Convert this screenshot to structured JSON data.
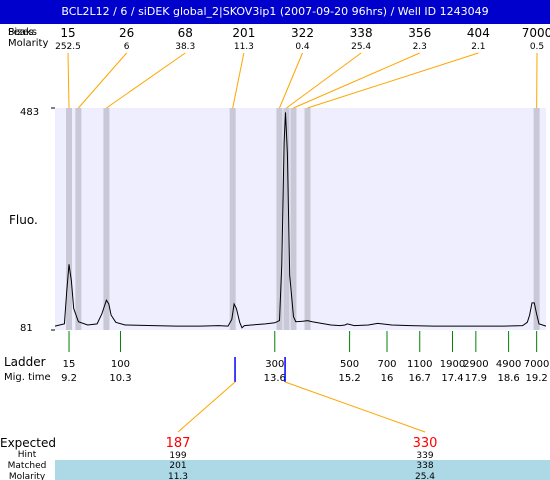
{
  "title": "BCL2L12 / 6 / siDEK global_2|SKOV3ip1 (2007-09-20 96hrs) / Well ID 1243049",
  "top_labels": {
    "sizes": "Sizes",
    "peaks": "Peaks",
    "molarity": "Molarity"
  },
  "row_labels": {
    "fluo": "Fluo.",
    "ladder": "Ladder",
    "mig_time": "Mig. time",
    "expected": "Expected",
    "hint": "Hint",
    "matched": "Matched",
    "molarity": "Molarity"
  },
  "colors": {
    "title_bg": "#0000cc",
    "plot_bg": "#eeeeff",
    "band": "#c8c8d6",
    "leader": "#ffa500",
    "ladder_tick": "#008000",
    "expected_text": "#ff0000",
    "expected_tick": "#0000ff",
    "matched_bg": "#add8e6",
    "trace": "#000000"
  },
  "chart_data": {
    "type": "line",
    "ylim": [
      81,
      483
    ],
    "ytick_labels": [
      "483",
      "81"
    ],
    "peaks": [
      {
        "size": "15",
        "molarity": "252.5",
        "time": 9.2
      },
      {
        "size": "26",
        "molarity": "6",
        "time": 9.4
      },
      {
        "size": "68",
        "molarity": "38.3",
        "time": 10.0
      },
      {
        "size": "201",
        "molarity": "11.3",
        "time": 12.7
      },
      {
        "size": "322",
        "molarity": "0.4",
        "time": 13.7
      },
      {
        "size": "338",
        "molarity": "25.4",
        "time": 13.85
      },
      {
        "size": "356",
        "molarity": "2.3",
        "time": 14.0
      },
      {
        "size": "404",
        "molarity": "2.1",
        "time": 14.3
      },
      {
        "size": "7000",
        "molarity": "0.5",
        "time": 19.2
      }
    ],
    "ladder": [
      {
        "size": "15",
        "time": "9.2"
      },
      {
        "size": "100",
        "time": "10.3"
      },
      {
        "size": "300",
        "time": "13.6"
      },
      {
        "size": "500",
        "time": "15.2"
      },
      {
        "size": "700",
        "time": "16"
      },
      {
        "size": "1100",
        "time": "16.7"
      },
      {
        "size": "1900",
        "time": "17.4"
      },
      {
        "size": "2900",
        "time": "17.9"
      },
      {
        "size": "4900",
        "time": "18.6"
      },
      {
        "size": "7000",
        "time": "19.2"
      }
    ],
    "expected": [
      {
        "expected": "187",
        "hint": "199",
        "matched": "201",
        "molarity": "11.3",
        "time": 12.75
      },
      {
        "expected": "330",
        "hint": "339",
        "matched": "338",
        "molarity": "25.4",
        "time": 13.82
      }
    ],
    "trace": [
      [
        8.9,
        88
      ],
      [
        9.1,
        92
      ],
      [
        9.15,
        150
      ],
      [
        9.2,
        200
      ],
      [
        9.25,
        170
      ],
      [
        9.3,
        120
      ],
      [
        9.4,
        96
      ],
      [
        9.6,
        90
      ],
      [
        9.8,
        92
      ],
      [
        9.9,
        110
      ],
      [
        10.0,
        135
      ],
      [
        10.05,
        128
      ],
      [
        10.1,
        108
      ],
      [
        10.2,
        95
      ],
      [
        10.4,
        90
      ],
      [
        11.0,
        89
      ],
      [
        11.5,
        88
      ],
      [
        12.0,
        88
      ],
      [
        12.4,
        89
      ],
      [
        12.6,
        88
      ],
      [
        12.68,
        100
      ],
      [
        12.73,
        128
      ],
      [
        12.78,
        120
      ],
      [
        12.85,
        95
      ],
      [
        12.9,
        85
      ],
      [
        12.95,
        89
      ],
      [
        13.1,
        90
      ],
      [
        13.4,
        92
      ],
      [
        13.6,
        94
      ],
      [
        13.7,
        98
      ],
      [
        13.75,
        200
      ],
      [
        13.8,
        420
      ],
      [
        13.83,
        475
      ],
      [
        13.87,
        400
      ],
      [
        13.92,
        180
      ],
      [
        14.0,
        105
      ],
      [
        14.05,
        96
      ],
      [
        14.2,
        97
      ],
      [
        14.3,
        98
      ],
      [
        14.4,
        96
      ],
      [
        14.6,
        93
      ],
      [
        14.8,
        90
      ],
      [
        15.0,
        89
      ],
      [
        15.1,
        90
      ],
      [
        15.15,
        92
      ],
      [
        15.3,
        89
      ],
      [
        15.6,
        90
      ],
      [
        15.8,
        93
      ],
      [
        15.9,
        92
      ],
      [
        16.1,
        90
      ],
      [
        16.5,
        89
      ],
      [
        17.0,
        88
      ],
      [
        17.5,
        88
      ],
      [
        18.0,
        88
      ],
      [
        18.5,
        88
      ],
      [
        18.9,
        89
      ],
      [
        19.0,
        95
      ],
      [
        19.05,
        108
      ],
      [
        19.1,
        130
      ],
      [
        19.15,
        130
      ],
      [
        19.2,
        110
      ],
      [
        19.25,
        92
      ],
      [
        19.4,
        88
      ]
    ]
  }
}
